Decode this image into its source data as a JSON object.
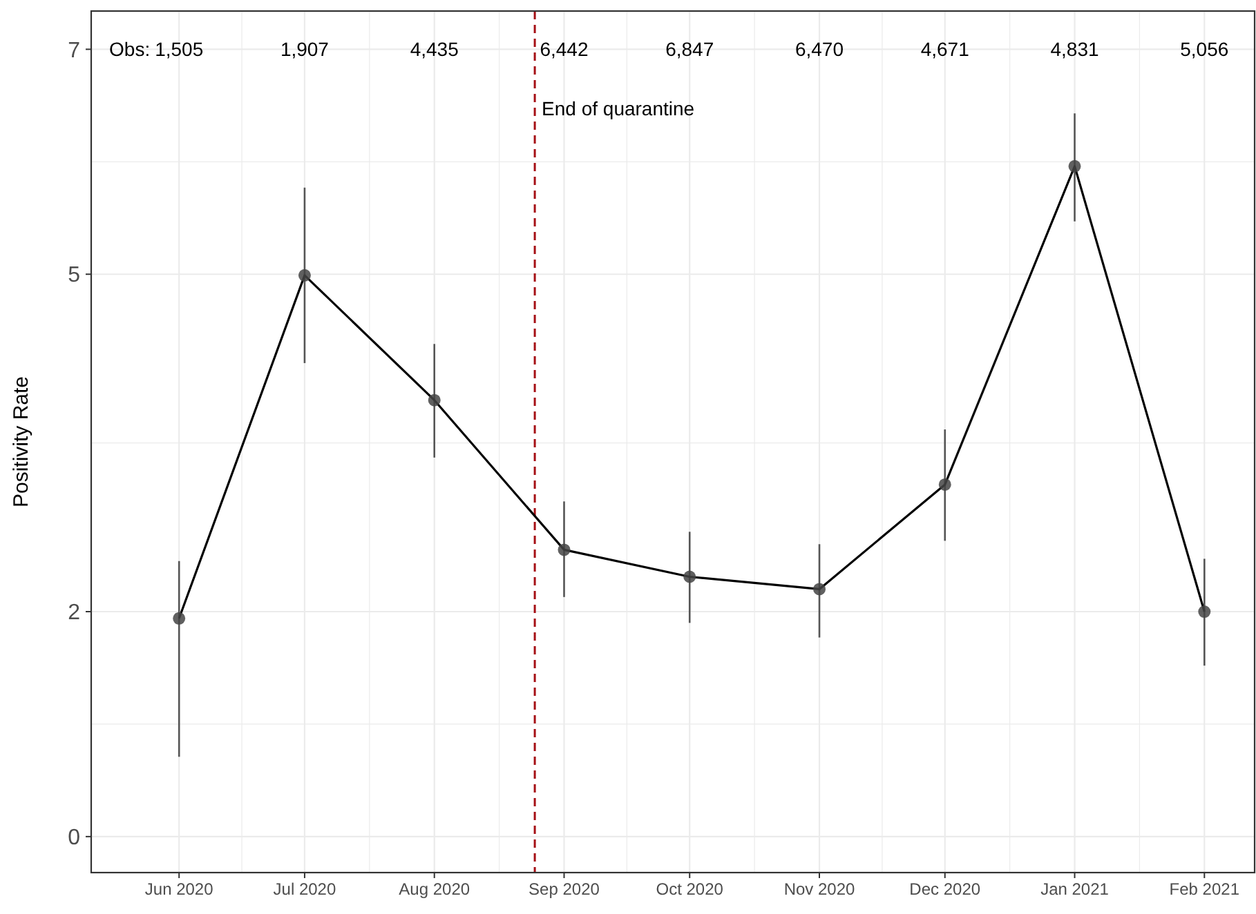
{
  "chart_data": {
    "type": "line",
    "ylabel": "Positivity Rate",
    "x": [
      "2020-06-01",
      "2020-07-01",
      "2020-08-01",
      "2020-09-01",
      "2020-10-01",
      "2020-11-01",
      "2020-12-01",
      "2021-01-01",
      "2021-02-01"
    ],
    "series": [
      {
        "color": "#000000",
        "values": [
          1.94,
          4.99,
          3.88,
          2.55,
          2.31,
          2.2,
          3.13,
          5.96,
          2.0
        ],
        "errors": [
          [
            0.71,
            2.45
          ],
          [
            4.21,
            5.77
          ],
          [
            3.37,
            4.38
          ],
          [
            2.13,
            2.98
          ],
          [
            1.9,
            2.71
          ],
          [
            1.77,
            2.6
          ],
          [
            2.63,
            3.62
          ],
          [
            5.47,
            6.43
          ],
          [
            1.52,
            2.47
          ]
        ]
      }
    ],
    "marker": "circle",
    "line_style": "solid",
    "grid": true,
    "xlim": [
      "2020-05-11",
      "2021-02-13"
    ],
    "xticks": [
      {
        "value": "2020-06-01",
        "label": "Jun 2020"
      },
      {
        "value": "2020-07-01",
        "label": "Jul 2020"
      },
      {
        "value": "2020-08-01",
        "label": "Aug 2020"
      },
      {
        "value": "2020-09-01",
        "label": "Sep 2020"
      },
      {
        "value": "2020-10-01",
        "label": "Oct 2020"
      },
      {
        "value": "2020-11-01",
        "label": "Nov 2020"
      },
      {
        "value": "2020-12-01",
        "label": "Dec 2020"
      },
      {
        "value": "2021-01-01",
        "label": "Jan 2021"
      },
      {
        "value": "2021-02-01",
        "label": "Feb 2021"
      }
    ],
    "ylim": [
      -0.32,
      7.34
    ],
    "yticks": [
      0,
      2,
      5,
      7
    ],
    "ref_lines": [
      {
        "axis": "x",
        "value": "2020-08-25",
        "label": "End of quarantine",
        "color": "#a50f15",
        "line_style": "dashed"
      }
    ],
    "annotations": [
      "Obs:",
      "1,505",
      "1,907",
      "4,435",
      "6,442",
      "6,847",
      "6,470",
      "4,671",
      "4,831",
      "5,056"
    ]
  }
}
